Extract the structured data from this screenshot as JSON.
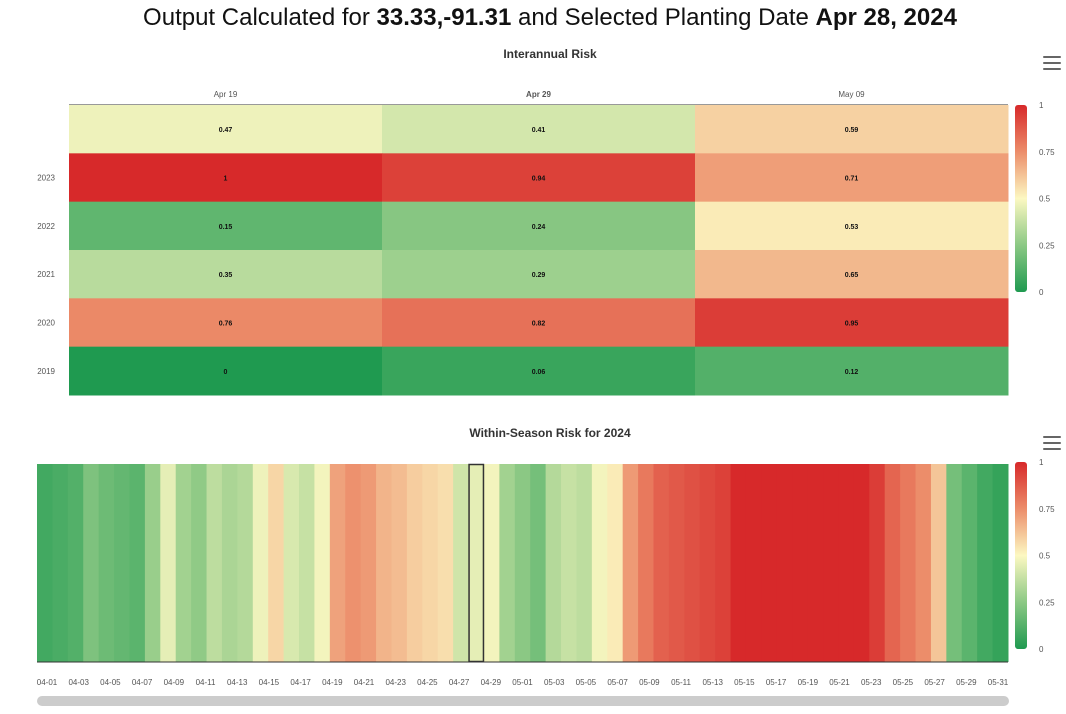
{
  "header": {
    "prefix": "Output Calculated for ",
    "coords": "33.33,-91.31",
    "middle": " and Selected Planting Date ",
    "date": "Apr 28, 2024"
  },
  "chart_data": [
    {
      "type": "heatmap",
      "title": "Interannual Risk",
      "x_categories": [
        "Apr 19",
        "Apr 29",
        "May 09"
      ],
      "y_categories": [
        "",
        "2023",
        "2022",
        "2021",
        "2020",
        "2019"
      ],
      "values": [
        [
          0.47,
          0.41,
          0.59
        ],
        [
          1,
          0.94,
          0.71
        ],
        [
          0.15,
          0.24,
          0.53
        ],
        [
          0.35,
          0.29,
          0.65
        ],
        [
          0.76,
          0.82,
          0.95
        ],
        [
          0,
          0.06,
          0.12
        ]
      ],
      "color_scale": {
        "min": 0,
        "max": 1,
        "ticks": [
          "0",
          "0.25",
          "0.5",
          "0.75",
          "1"
        ],
        "colors": [
          "#1f9a50",
          "#fdf9c4",
          "#d7292a"
        ]
      },
      "selected_x": "Apr 29"
    },
    {
      "type": "heatmap",
      "title": "Within-Season Risk for 2024",
      "x_tick_labels": [
        "04-01",
        "04-03",
        "04-05",
        "04-07",
        "04-09",
        "04-11",
        "04-13",
        "04-15",
        "04-17",
        "04-19",
        "04-21",
        "04-23",
        "04-25",
        "04-27",
        "04-29",
        "05-01",
        "05-03",
        "05-05",
        "05-07",
        "05-09",
        "05-11",
        "05-13",
        "05-15",
        "05-17",
        "05-19",
        "05-21",
        "05-23",
        "05-25",
        "05-27",
        "05-29",
        "05-31"
      ],
      "values": [
        0.08,
        0.1,
        0.12,
        0.22,
        0.18,
        0.16,
        0.14,
        0.28,
        0.45,
        0.3,
        0.26,
        0.36,
        0.32,
        0.34,
        0.47,
        0.58,
        0.42,
        0.38,
        0.48,
        0.7,
        0.74,
        0.72,
        0.66,
        0.64,
        0.6,
        0.58,
        0.56,
        0.4,
        0.45,
        0.48,
        0.3,
        0.25,
        0.2,
        0.34,
        0.38,
        0.36,
        0.48,
        0.53,
        0.72,
        0.8,
        0.86,
        0.88,
        0.9,
        0.92,
        0.94,
        1,
        1,
        1,
        1,
        1,
        1,
        1,
        1,
        1,
        0.95,
        0.85,
        0.8,
        0.75,
        0.62,
        0.2,
        0.14,
        0.08,
        0.05
      ],
      "selected_index": 28,
      "color_scale": {
        "min": 0,
        "max": 1,
        "ticks": [
          "0",
          "0.25",
          "0.5",
          "0.75",
          "1"
        ]
      }
    }
  ]
}
